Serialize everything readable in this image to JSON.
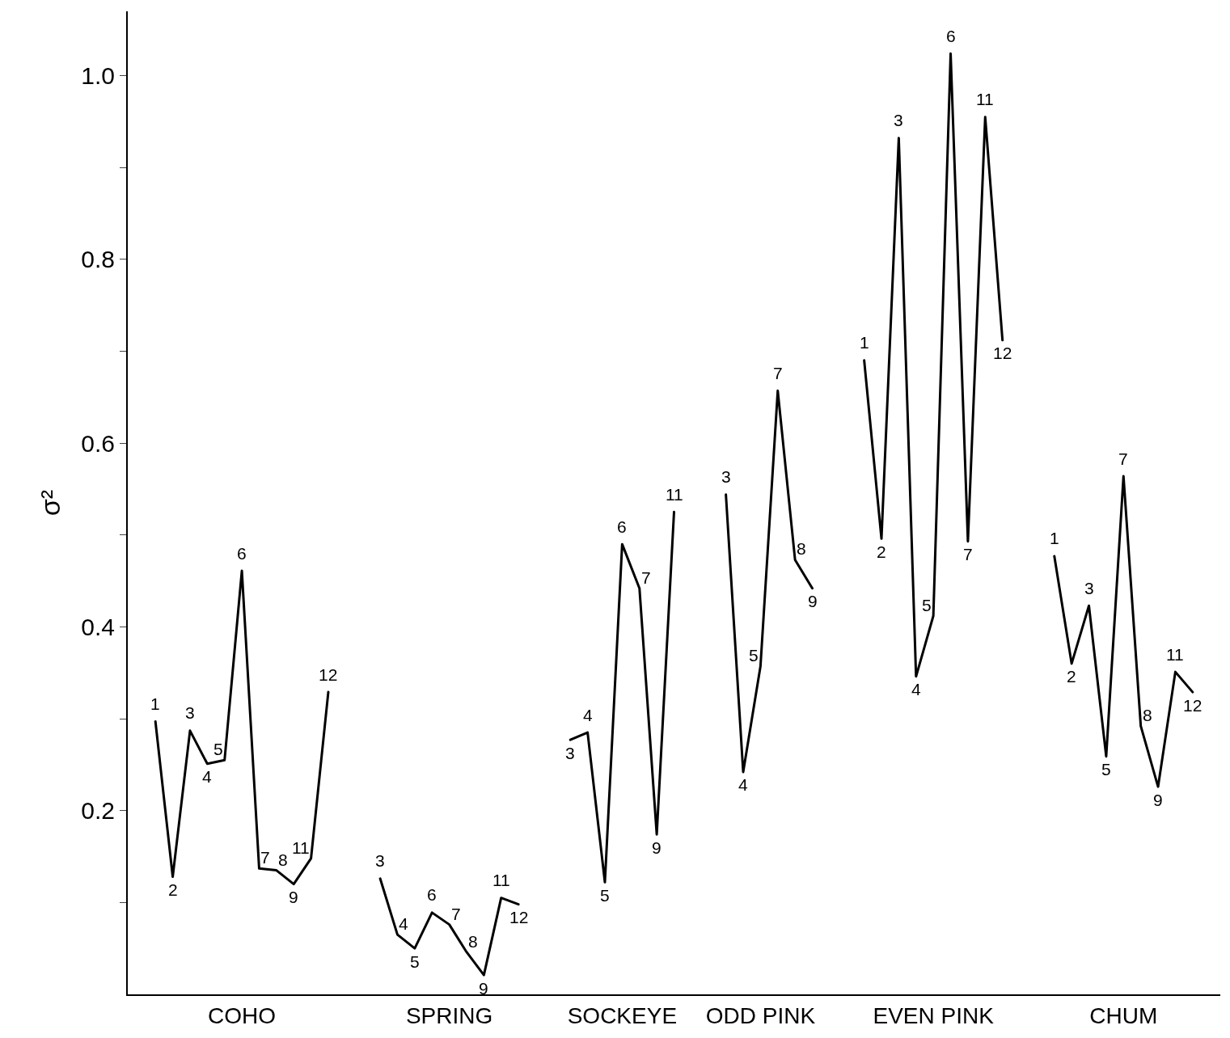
{
  "chart_data": {
    "type": "line",
    "ylabel": "σ²",
    "ylim": [
      0,
      1.07
    ],
    "categories": [
      null,
      null,
      null,
      null,
      null,
      null,
      "COHO",
      null,
      null,
      null,
      null,
      null,
      null,
      null,
      null,
      null,
      null,
      null,
      "SPRING",
      null,
      null,
      null,
      null,
      null,
      null,
      null,
      null,
      null,
      "SOCKEYE",
      null,
      null,
      null,
      null,
      null,
      null,
      null,
      "ODD PINK",
      null,
      null,
      null,
      null,
      null,
      null,
      null,
      null,
      null,
      "EVEN PINK",
      null,
      null,
      null,
      null,
      null,
      null,
      null,
      null,
      null,
      null,
      "CHUM",
      null,
      null,
      null,
      null,
      null
    ],
    "yticks": [
      {
        "value": 0.1,
        "label": null
      },
      0.2,
      {
        "value": 0.3,
        "label": null
      },
      0.4,
      {
        "value": 0.5,
        "label": null
      },
      0.6,
      {
        "value": 0.7,
        "label": null
      },
      0.8,
      {
        "value": 0.9,
        "label": null
      },
      {
        "value": 1.0,
        "label": "1.0"
      }
    ],
    "marker": "none",
    "line_style": "solid",
    "series": [
      {
        "color": "#000000",
        "values": [
          null,
          0.297,
          0.128,
          0.287,
          0.251,
          0.255,
          0.461,
          0.137,
          0.135,
          0.12,
          0.148,
          0.329,
          null,
          null,
          null,
          null,
          null,
          null,
          null,
          null,
          null,
          null,
          null,
          null,
          null,
          null,
          null,
          null,
          null,
          null,
          null,
          null,
          null,
          null,
          null,
          null,
          null,
          null,
          null,
          null,
          null,
          null,
          null,
          null,
          null,
          null,
          null,
          null,
          null,
          null,
          null,
          null,
          null,
          null,
          null,
          null,
          null,
          null,
          null,
          null,
          null,
          null,
          null
        ]
      },
      {
        "color": "#000000",
        "values": [
          null,
          null,
          null,
          null,
          null,
          null,
          null,
          null,
          null,
          null,
          null,
          null,
          null,
          null,
          0.126,
          0.065,
          0.05,
          0.089,
          0.076,
          0.046,
          0.021,
          0.105,
          0.098,
          null,
          null,
          null,
          null,
          null,
          null,
          null,
          null,
          null,
          null,
          null,
          null,
          null,
          null,
          null,
          null,
          null,
          null,
          null,
          null,
          null,
          null,
          null,
          null,
          null,
          null,
          null,
          null,
          null,
          null,
          null,
          null,
          null,
          null,
          null,
          null,
          null,
          null,
          null,
          null
        ]
      },
      {
        "color": "#000000",
        "values": [
          null,
          null,
          null,
          null,
          null,
          null,
          null,
          null,
          null,
          null,
          null,
          null,
          null,
          null,
          null,
          null,
          null,
          null,
          null,
          null,
          null,
          null,
          null,
          null,
          null,
          0.277,
          0.285,
          0.122,
          0.49,
          0.442,
          0.174,
          0.525,
          null,
          null,
          null,
          null,
          null,
          null,
          null,
          null,
          null,
          null,
          null,
          null,
          null,
          null,
          null,
          null,
          null,
          null,
          null,
          null,
          null,
          null,
          null,
          null,
          null,
          null,
          null,
          null,
          null,
          null,
          null
        ]
      },
      {
        "color": "#000000",
        "values": [
          null,
          null,
          null,
          null,
          null,
          null,
          null,
          null,
          null,
          null,
          null,
          null,
          null,
          null,
          null,
          null,
          null,
          null,
          null,
          null,
          null,
          null,
          null,
          null,
          null,
          null,
          null,
          null,
          null,
          null,
          null,
          null,
          null,
          null,
          0.544,
          0.242,
          0.357,
          0.657,
          0.473,
          0.442,
          null,
          null,
          null,
          null,
          null,
          null,
          null,
          null,
          null,
          null,
          null,
          null,
          null,
          null,
          null,
          null,
          null,
          null,
          null,
          null,
          null,
          null,
          null
        ]
      },
      {
        "color": "#000000",
        "values": [
          null,
          null,
          null,
          null,
          null,
          null,
          null,
          null,
          null,
          null,
          null,
          null,
          null,
          null,
          null,
          null,
          null,
          null,
          null,
          null,
          null,
          null,
          null,
          null,
          null,
          null,
          null,
          null,
          null,
          null,
          null,
          null,
          null,
          null,
          null,
          null,
          null,
          null,
          null,
          null,
          null,
          null,
          0.69,
          0.496,
          0.932,
          0.346,
          0.412,
          1.024,
          0.493,
          0.955,
          0.712,
          null,
          null,
          null,
          null,
          null,
          null,
          null,
          null,
          null,
          null,
          null,
          null
        ]
      },
      {
        "color": "#000000",
        "values": [
          null,
          null,
          null,
          null,
          null,
          null,
          null,
          null,
          null,
          null,
          null,
          null,
          null,
          null,
          null,
          null,
          null,
          null,
          null,
          null,
          null,
          null,
          null,
          null,
          null,
          null,
          null,
          null,
          null,
          null,
          null,
          null,
          null,
          null,
          null,
          null,
          null,
          null,
          null,
          null,
          null,
          null,
          null,
          null,
          null,
          null,
          null,
          null,
          null,
          null,
          null,
          null,
          null,
          0.477,
          0.36,
          0.423,
          0.259,
          0.564,
          0.292,
          0.226,
          0.351,
          0.329,
          null
        ]
      }
    ],
    "annotations": [
      {
        "text": "1",
        "y": 0.297
      },
      {
        "text": "2",
        "y": 0.128
      },
      {
        "text": "3",
        "y": 0.287
      },
      {
        "text": "4",
        "y": 0.251
      },
      {
        "text": "5",
        "y": 0.255
      },
      {
        "text": "6",
        "y": 0.461
      },
      {
        "text": "7",
        "y": 0.137
      },
      {
        "text": "8",
        "y": 0.135
      },
      {
        "text": "9",
        "y": 0.12
      },
      "11",
      {
        "text": "12",
        "y": 0.329
      },
      {
        "text": "3",
        "y": 0.126
      },
      {
        "text": "4",
        "y": 0.065
      },
      {
        "text": "5",
        "y": 0.05
      },
      {
        "text": "6",
        "y": 0.089
      },
      "7",
      {
        "text": "8",
        "y": 0.046
      },
      {
        "text": "9",
        "y": 0.021
      },
      {
        "text": "11",
        "y": 0.105
      },
      {
        "text": "12",
        "y": 0.098
      },
      {
        "text": "3",
        "y": 0.277
      },
      {
        "text": "4",
        "y": 0.285
      },
      {
        "text": "5",
        "y": 0.122
      },
      {
        "text": "6",
        "y": 0.49
      },
      "7",
      {
        "text": "9",
        "y": 0.174
      },
      {
        "text": "11",
        "y": 0.525
      },
      {
        "text": "3",
        "y": 0.544
      },
      {
        "text": "4",
        "y": 0.242
      },
      "5",
      {
        "text": "7",
        "y": 0.657
      },
      "8",
      {
        "text": "9",
        "y": 0.442
      },
      {
        "text": "1",
        "y": 0.69
      },
      {
        "text": "2",
        "y": 0.496
      },
      {
        "text": "3",
        "y": 0.932
      },
      {
        "text": "4",
        "y": 0.346
      },
      "5",
      {
        "text": "6",
        "y": 1.024
      },
      {
        "text": "7",
        "y": 0.493
      },
      {
        "text": "11",
        "y": 0.955
      },
      {
        "text": "12",
        "y": 0.712
      },
      {
        "text": "1",
        "y": 0.477
      },
      {
        "text": "2",
        "y": 0.36
      },
      {
        "text": "3",
        "y": 0.423
      },
      {
        "text": "5",
        "y": 0.259
      },
      {
        "text": "7",
        "y": 0.564
      },
      "8",
      {
        "text": "9",
        "y": 0.226
      },
      {
        "text": "11",
        "y": 0.351
      },
      {
        "text": "12",
        "y": 0.329
      }
    ]
  }
}
